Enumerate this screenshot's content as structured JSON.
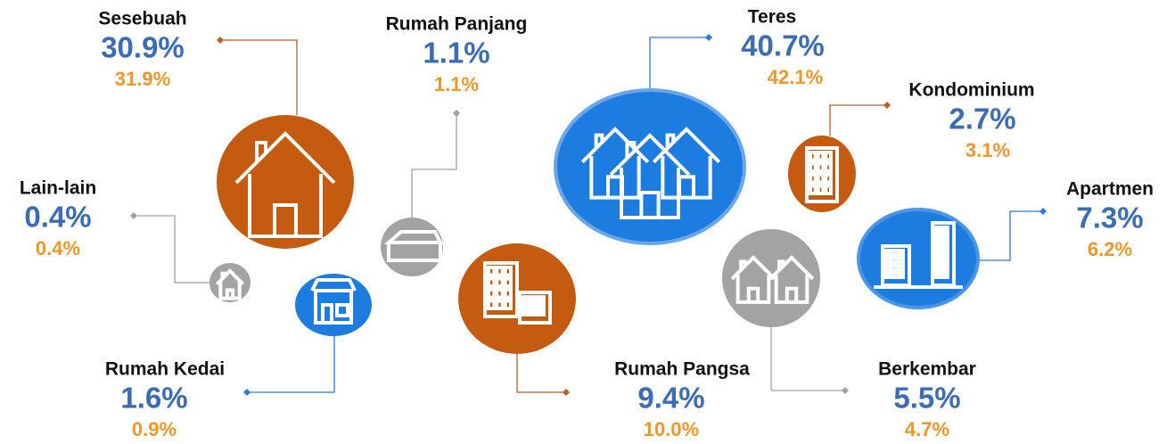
{
  "items": [
    {
      "label": "Sesebuah",
      "share": "30.9%",
      "share_2": "31.9%"
    },
    {
      "label": "Rumah Panjang",
      "share": "1.1%",
      "share_2": "1.1%"
    },
    {
      "label": "Lain-lain",
      "share": "0.4%",
      "share_2": "0.4%"
    },
    {
      "label": "Rumah Kedai",
      "share": "1.6%",
      "share_2": "0.9%"
    },
    {
      "label": "Teres",
      "share": "40.7%",
      "share_2": "42.1%"
    },
    {
      "label": "Kondominium",
      "share": "2.7%",
      "share_2": "3.1%"
    },
    {
      "label": "Apartmen",
      "share": "7.3%",
      "share_2": "6.2%"
    },
    {
      "label": "Rumah Pangsa",
      "share": "9.4%",
      "share_2": "10.0%"
    },
    {
      "label": "Berkembar",
      "share": "5.5%",
      "share_2": "4.7%"
    }
  ]
}
